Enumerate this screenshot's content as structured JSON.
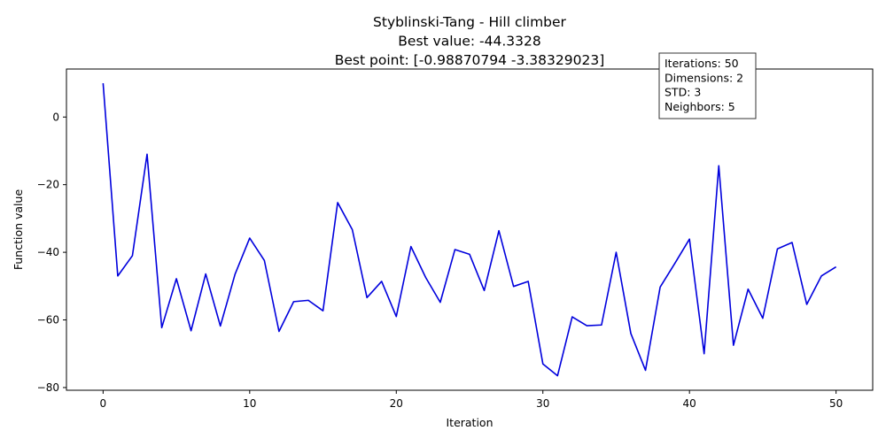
{
  "chart_data": {
    "type": "line",
    "title_lines": [
      "Styblinski-Tang - Hill climber",
      "Best value: -44.3328",
      "Best point: [-0.98870794 -3.38329023]"
    ],
    "xlabel": "Iteration",
    "ylabel": "Function value",
    "xlim": [
      -2.5,
      52.5
    ],
    "ylim": [
      -80.8,
      14.2
    ],
    "x_ticks": [
      0,
      10,
      20,
      30,
      40,
      50
    ],
    "y_ticks": [
      0,
      -20,
      -40,
      -60,
      -80
    ],
    "x_tick_labels": [
      "0",
      "10",
      "20",
      "30",
      "40",
      "50"
    ],
    "y_tick_labels": [
      "0",
      "−20",
      "−40",
      "−60",
      "−80"
    ],
    "grid": false,
    "line_color": "#0000dd",
    "series": [
      {
        "x": [
          0,
          1,
          2,
          3,
          4,
          5,
          6,
          7,
          8,
          9,
          10,
          11,
          12,
          13,
          14,
          15,
          16,
          17,
          18,
          19,
          20,
          21,
          22,
          23,
          24,
          25,
          26,
          27,
          28,
          29,
          30,
          31,
          32,
          33,
          34,
          35,
          36,
          37,
          38,
          39,
          40,
          41,
          42,
          43,
          44,
          45,
          46,
          47,
          48,
          49,
          50
        ],
        "y": [
          10,
          -47,
          -41,
          -11,
          -62.3,
          -47.8,
          -63.2,
          -46.4,
          -61.8,
          -46.5,
          -35.8,
          -42.4,
          -63.4,
          -54.6,
          -54.2,
          -57.3,
          -25.3,
          -33.3,
          -53.4,
          -48.6,
          -59,
          -38.3,
          -47.4,
          -54.8,
          -39.2,
          -40.6,
          -51.3,
          -33.6,
          -50.1,
          -48.6,
          -73,
          -76.5,
          -59.1,
          -61.7,
          -61.5,
          -40,
          -64,
          -74.9,
          -50.3,
          -43.3,
          -36.1,
          -70,
          -14.4,
          -67.5,
          -50.9,
          -59.5,
          -39,
          -37.1,
          -55.4,
          -47,
          -44.3
        ]
      }
    ],
    "info_box": {
      "lines": [
        "Iterations: 50",
        "Dimensions: 2",
        "STD: 3",
        "Neighbors: 5"
      ],
      "placement": "top-right"
    }
  }
}
